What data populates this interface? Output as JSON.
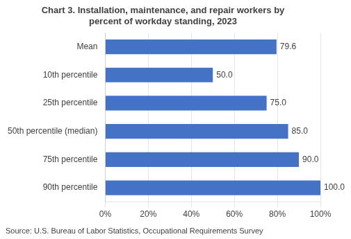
{
  "chart_data": {
    "type": "bar",
    "orientation": "horizontal",
    "title": "Chart 3. Installation, maintenance, and repair workers by\npercent of workday standing, 2023",
    "categories": [
      "Mean",
      "10th percentile",
      "25th percentile",
      "50th percentile (median)",
      "75th percentile",
      "90th percentile"
    ],
    "values": [
      79.6,
      50.0,
      75.0,
      85.0,
      90.0,
      100.0
    ],
    "value_labels": [
      "79.6",
      "50.0",
      "75.0",
      "85.0",
      "90.0",
      "100.0"
    ],
    "data_labels": true,
    "color": "#4472C4",
    "xlim": [
      0,
      100
    ],
    "xticks": [
      {
        "value": 0,
        "label": "0%"
      },
      {
        "value": 20,
        "label": "20%"
      },
      {
        "value": 40,
        "label": "40%"
      },
      {
        "value": 60,
        "label": "60%"
      },
      {
        "value": 80,
        "label": "80%"
      },
      {
        "value": 100,
        "label": "100%"
      }
    ],
    "grid": true,
    "source": "Source: U.S. Bureau of Labor Statistics, Occupational Requirements Survey"
  }
}
